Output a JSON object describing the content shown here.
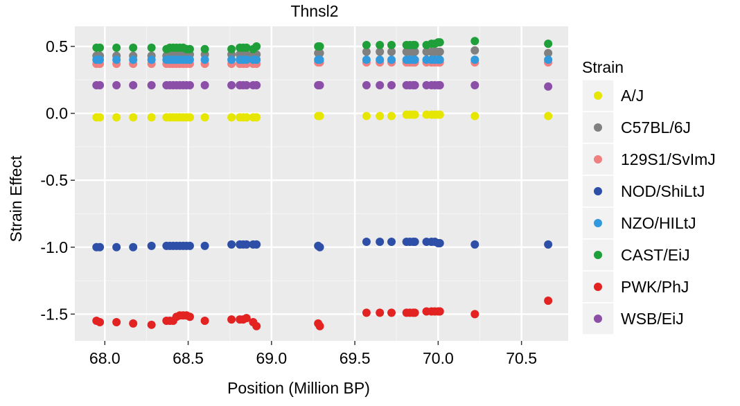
{
  "chart_data": {
    "type": "scatter",
    "title": "Thnsl2",
    "xlabel": "Position (Million BP)",
    "ylabel": "Strain Effect",
    "xlim": [
      67.82,
      70.78
    ],
    "ylim": [
      -1.7,
      0.65
    ],
    "x_ticks": [
      68.0,
      68.5,
      69.0,
      69.5,
      70.0,
      70.5
    ],
    "x_tick_labels": [
      "68.0",
      "68.5",
      "69.0",
      "69.5",
      "70.0",
      "70.5"
    ],
    "y_ticks": [
      0.5,
      0.0,
      -0.5,
      -1.0,
      -1.5
    ],
    "y_tick_labels": [
      "0.5",
      "0.0",
      "-0.5",
      "-1.0",
      "-1.5"
    ],
    "grid": true,
    "background": "#ebebeb",
    "legend": {
      "title": "Strain",
      "position": "right"
    },
    "x": [
      67.95,
      67.97,
      68.07,
      68.17,
      68.28,
      68.37,
      68.39,
      68.41,
      68.43,
      68.45,
      68.47,
      68.49,
      68.51,
      68.6,
      68.76,
      68.81,
      68.83,
      68.85,
      68.89,
      68.91,
      69.28,
      69.29,
      69.57,
      69.65,
      69.72,
      69.81,
      69.83,
      69.85,
      69.86,
      69.93,
      69.96,
      69.98,
      70.0,
      70.01,
      70.22,
      70.66
    ],
    "series": [
      {
        "name": "A/J",
        "color": "#e6e600",
        "values": [
          -0.03,
          -0.03,
          -0.03,
          -0.03,
          -0.03,
          -0.03,
          -0.03,
          -0.03,
          -0.03,
          -0.03,
          -0.03,
          -0.03,
          -0.03,
          -0.03,
          -0.03,
          -0.03,
          -0.03,
          -0.03,
          -0.03,
          -0.03,
          -0.02,
          -0.02,
          -0.02,
          -0.02,
          -0.02,
          -0.01,
          -0.01,
          -0.01,
          -0.01,
          -0.01,
          -0.01,
          -0.01,
          -0.01,
          -0.01,
          -0.02,
          -0.02
        ]
      },
      {
        "name": "C57BL/6J",
        "color": "#808080",
        "values": [
          0.43,
          0.43,
          0.43,
          0.43,
          0.43,
          0.43,
          0.44,
          0.44,
          0.44,
          0.44,
          0.44,
          0.44,
          0.44,
          0.44,
          0.44,
          0.44,
          0.44,
          0.44,
          0.44,
          0.44,
          0.45,
          0.45,
          0.46,
          0.46,
          0.46,
          0.46,
          0.46,
          0.46,
          0.46,
          0.46,
          0.46,
          0.46,
          0.46,
          0.46,
          0.47,
          0.45
        ]
      },
      {
        "name": "129S1/SvImJ",
        "color": "#f08080",
        "values": [
          0.37,
          0.37,
          0.37,
          0.37,
          0.37,
          0.37,
          0.37,
          0.37,
          0.37,
          0.37,
          0.37,
          0.37,
          0.37,
          0.37,
          0.37,
          0.37,
          0.37,
          0.37,
          0.37,
          0.37,
          0.38,
          0.38,
          0.38,
          0.38,
          0.38,
          0.38,
          0.38,
          0.38,
          0.38,
          0.38,
          0.38,
          0.38,
          0.38,
          0.38,
          0.38,
          0.38
        ]
      },
      {
        "name": "NOD/ShiLtJ",
        "color": "#2e4fa8",
        "values": [
          -1.0,
          -1.0,
          -1.0,
          -1.0,
          -0.99,
          -0.99,
          -0.99,
          -0.99,
          -0.99,
          -0.99,
          -0.99,
          -0.99,
          -0.99,
          -0.99,
          -0.98,
          -0.98,
          -0.98,
          -0.98,
          -0.98,
          -0.98,
          -0.99,
          -1.0,
          -0.96,
          -0.96,
          -0.96,
          -0.96,
          -0.96,
          -0.96,
          -0.96,
          -0.96,
          -0.96,
          -0.96,
          -0.97,
          -0.97,
          -0.98,
          -0.98
        ]
      },
      {
        "name": "NZO/HILtJ",
        "color": "#3399dd",
        "values": [
          0.4,
          0.4,
          0.4,
          0.4,
          0.4,
          0.4,
          0.4,
          0.4,
          0.4,
          0.4,
          0.4,
          0.4,
          0.4,
          0.4,
          0.4,
          0.4,
          0.4,
          0.4,
          0.4,
          0.4,
          0.4,
          0.4,
          0.4,
          0.4,
          0.4,
          0.4,
          0.4,
          0.4,
          0.4,
          0.4,
          0.4,
          0.4,
          0.4,
          0.4,
          0.4,
          0.4
        ]
      },
      {
        "name": "CAST/EiJ",
        "color": "#1f9f3a",
        "values": [
          0.49,
          0.49,
          0.49,
          0.49,
          0.49,
          0.48,
          0.49,
          0.49,
          0.49,
          0.49,
          0.49,
          0.48,
          0.48,
          0.48,
          0.48,
          0.49,
          0.49,
          0.49,
          0.48,
          0.5,
          0.5,
          0.5,
          0.51,
          0.51,
          0.51,
          0.51,
          0.51,
          0.51,
          0.51,
          0.51,
          0.52,
          0.52,
          0.53,
          0.53,
          0.54,
          0.52
        ]
      },
      {
        "name": "PWK/PhJ",
        "color": "#e32222",
        "values": [
          -1.55,
          -1.56,
          -1.56,
          -1.57,
          -1.58,
          -1.55,
          -1.55,
          -1.55,
          -1.52,
          -1.51,
          -1.51,
          -1.51,
          -1.52,
          -1.55,
          -1.54,
          -1.54,
          -1.54,
          -1.53,
          -1.56,
          -1.59,
          -1.57,
          -1.59,
          -1.49,
          -1.49,
          -1.49,
          -1.49,
          -1.49,
          -1.49,
          -1.49,
          -1.48,
          -1.48,
          -1.48,
          -1.48,
          -1.48,
          -1.5,
          -1.4
        ]
      },
      {
        "name": "WSB/EiJ",
        "color": "#8b4fa8",
        "values": [
          0.21,
          0.21,
          0.21,
          0.21,
          0.21,
          0.21,
          0.21,
          0.21,
          0.21,
          0.21,
          0.21,
          0.21,
          0.21,
          0.21,
          0.21,
          0.21,
          0.21,
          0.21,
          0.21,
          0.21,
          0.21,
          0.21,
          0.21,
          0.21,
          0.21,
          0.21,
          0.21,
          0.21,
          0.21,
          0.21,
          0.21,
          0.21,
          0.21,
          0.21,
          0.21,
          0.2
        ]
      }
    ]
  }
}
